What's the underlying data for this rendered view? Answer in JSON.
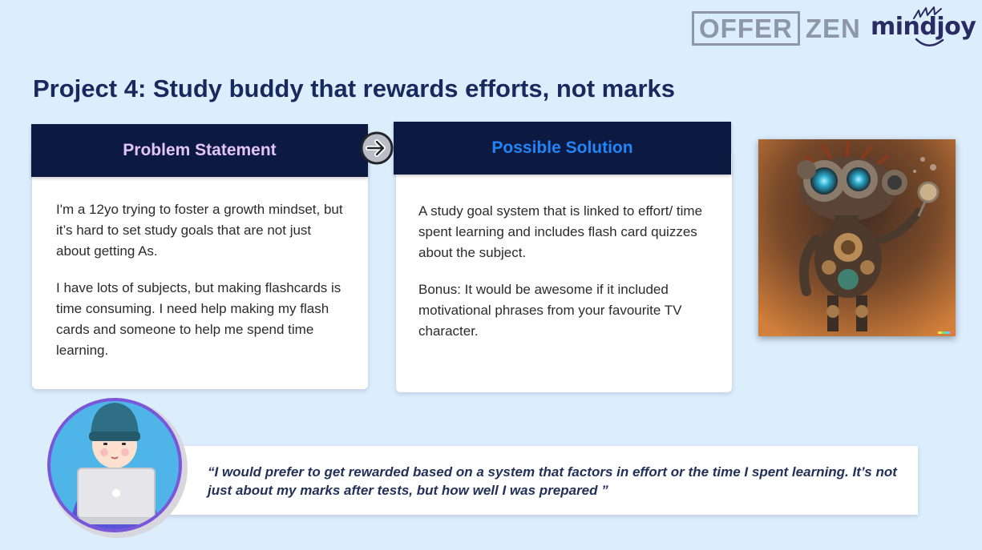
{
  "logos": {
    "offer": "OFFER",
    "zen": "ZEN",
    "mindjoy": "mindjoy"
  },
  "title": "Project 4: Study buddy that rewards efforts, not marks",
  "problem": {
    "header": "Problem Statement",
    "paragraphs": [
      "I'm a 12yo trying to foster a growth mindset, but it’s hard to set study goals that are not just about getting As.",
      "I have lots of subjects, but making flashcards is time consuming. I need help making my flash cards and someone to help me spend time learning."
    ]
  },
  "solution": {
    "header": "Possible Solution",
    "paragraphs": [
      "A study goal system that is linked to effort/ time spent learning and includes flash card quizzes about the subject.",
      "Bonus: It would be awesome if it included motivational phrases from your favourite TV character."
    ]
  },
  "quote": "“I would prefer to get rewarded based on a system that factors in effort or the time I spent learning. It’s not just about my marks after tests, but how well I was prepared ”",
  "icons": {
    "arrow": "arrow-right-circle-icon",
    "robot": "robot-illustration",
    "avatar": "student-with-laptop-avatar"
  },
  "colors": {
    "background": "#dcedfc",
    "header_bg": "#0c1a41",
    "problem_header_text": "#e3c4f7",
    "solution_header_text": "#2185f7",
    "title": "#18295e"
  }
}
